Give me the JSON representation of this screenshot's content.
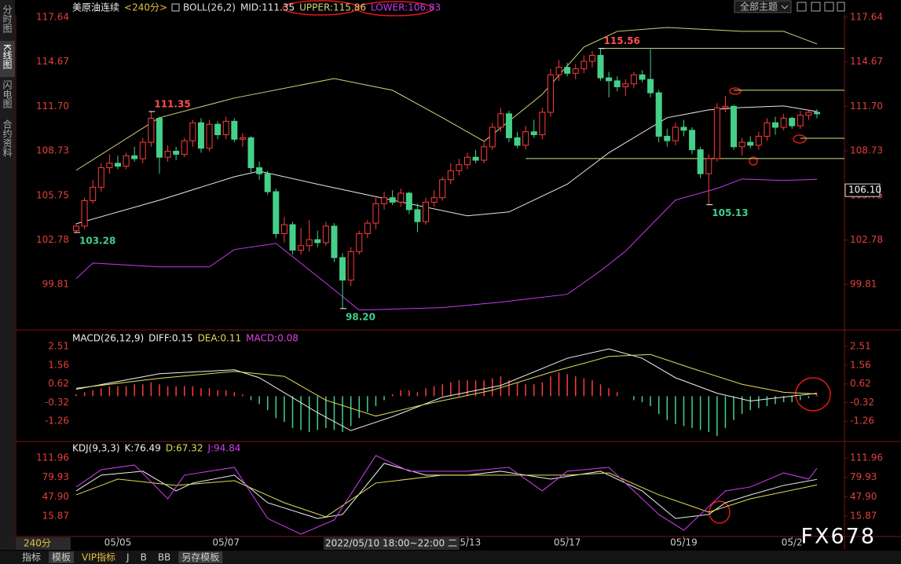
{
  "ui": {
    "sidebar": [
      "分时图",
      "K线图",
      "闪电图",
      "合约资料"
    ],
    "theme": "全部主题",
    "period_box": "240分",
    "tooltip": "2022/05/10 18:00~22:00 二",
    "bottom_tabs": [
      "指标",
      "模板",
      "VIP指标",
      "J",
      "B",
      "BB",
      "另存模板"
    ],
    "watermark": "FX678"
  },
  "chart_data": [
    {
      "type": "candlestick",
      "title": "美原油连续",
      "period": "<240分>",
      "indicator": "BOLL(26,2)",
      "up_color": "#ff3b3b",
      "down_color": "#45d08a",
      "xlim": [
        0,
        89
      ],
      "xticks": [
        {
          "value": 5,
          "label": "05/05"
        },
        {
          "value": 18,
          "label": "05/07"
        },
        {
          "value": 47,
          "label": "05/13"
        },
        {
          "value": 59,
          "label": "05/17"
        },
        {
          "value": 73,
          "label": "05/19"
        },
        {
          "value": 86,
          "label": "05/2"
        }
      ],
      "ylim": [
        96.88,
        117.85
      ],
      "yticks": [
        117.64,
        114.67,
        {
          "value": 111.7,
          "label": "111.70"
        },
        108.73,
        105.75,
        102.78,
        99.81
      ],
      "ohlc": [
        [
          103.4,
          103.9,
          103.28,
          103.7
        ],
        [
          103.7,
          105.6,
          103.5,
          105.4
        ],
        [
          105.4,
          106.8,
          105.2,
          106.3
        ],
        [
          106.3,
          107.9,
          106.0,
          107.6
        ],
        [
          107.6,
          108.5,
          107.2,
          107.9
        ],
        [
          107.9,
          108.4,
          107.5,
          107.7
        ],
        [
          107.7,
          108.6,
          107.5,
          108.4
        ],
        [
          108.4,
          109.0,
          108.0,
          108.2
        ],
        [
          108.2,
          109.6,
          107.9,
          109.3
        ],
        [
          109.3,
          111.35,
          109.0,
          110.9
        ],
        [
          110.9,
          111.0,
          107.2,
          108.3
        ],
        [
          108.3,
          109.1,
          108.0,
          108.7
        ],
        [
          108.7,
          109.0,
          108.1,
          108.5
        ],
        [
          108.5,
          109.6,
          108.3,
          109.4
        ],
        [
          109.4,
          110.8,
          109.0,
          110.6
        ],
        [
          110.6,
          110.9,
          108.6,
          108.9
        ],
        [
          108.9,
          110.8,
          108.7,
          110.5
        ],
        [
          110.5,
          110.7,
          109.5,
          109.8
        ],
        [
          109.8,
          111.0,
          109.5,
          110.7
        ],
        [
          110.7,
          110.9,
          109.3,
          109.5
        ],
        [
          109.5,
          109.9,
          109.0,
          109.6
        ],
        [
          109.6,
          109.7,
          107.3,
          107.6
        ],
        [
          107.6,
          108.0,
          106.8,
          107.2
        ],
        [
          107.2,
          107.4,
          105.8,
          106.0
        ],
        [
          106.0,
          106.2,
          102.9,
          103.2
        ],
        [
          103.2,
          104.3,
          102.6,
          103.8
        ],
        [
          103.8,
          104.0,
          101.8,
          102.1
        ],
        [
          102.1,
          103.6,
          101.8,
          102.4
        ],
        [
          102.4,
          104.1,
          102.0,
          102.8
        ],
        [
          102.8,
          103.4,
          102.3,
          102.6
        ],
        [
          102.6,
          104.0,
          102.4,
          103.7
        ],
        [
          103.7,
          103.9,
          101.3,
          101.6
        ],
        [
          101.6,
          101.9,
          98.2,
          100.1
        ],
        [
          100.1,
          102.3,
          99.7,
          102.0
        ],
        [
          102.0,
          103.4,
          101.8,
          103.2
        ],
        [
          103.2,
          104.1,
          102.9,
          103.9
        ],
        [
          103.9,
          105.6,
          103.5,
          105.2
        ],
        [
          105.2,
          106.0,
          104.8,
          105.6
        ],
        [
          105.6,
          106.1,
          105.1,
          105.3
        ],
        [
          105.3,
          106.2,
          105.0,
          105.9
        ],
        [
          105.9,
          106.0,
          104.5,
          104.8
        ],
        [
          104.8,
          105.2,
          103.3,
          104.0
        ],
        [
          104.0,
          105.6,
          103.8,
          105.3
        ],
        [
          105.3,
          106.1,
          105.0,
          105.6
        ],
        [
          105.6,
          107.0,
          105.4,
          106.8
        ],
        [
          106.8,
          107.9,
          106.5,
          107.4
        ],
        [
          107.4,
          108.2,
          107.1,
          107.8
        ],
        [
          107.8,
          108.6,
          107.5,
          108.3
        ],
        [
          108.3,
          108.8,
          107.9,
          108.1
        ],
        [
          108.1,
          109.4,
          107.9,
          109.0
        ],
        [
          109.0,
          110.6,
          108.8,
          110.3
        ],
        [
          110.3,
          111.6,
          110.0,
          111.2
        ],
        [
          111.2,
          111.4,
          109.3,
          109.6
        ],
        [
          109.6,
          110.0,
          108.9,
          109.1
        ],
        [
          109.1,
          110.4,
          108.8,
          110.0
        ],
        [
          110.0,
          110.8,
          109.6,
          109.8
        ],
        [
          109.8,
          111.6,
          109.5,
          111.3
        ],
        [
          111.3,
          114.2,
          111.0,
          113.8
        ],
        [
          113.8,
          114.8,
          113.4,
          114.3
        ],
        [
          114.3,
          114.6,
          113.7,
          113.9
        ],
        [
          113.9,
          114.5,
          113.5,
          114.2
        ],
        [
          114.2,
          115.1,
          113.9,
          114.7
        ],
        [
          114.7,
          115.4,
          114.3,
          115.1
        ],
        [
          115.1,
          115.56,
          113.4,
          113.6
        ],
        [
          113.6,
          114.0,
          112.3,
          113.4
        ],
        [
          113.4,
          113.7,
          112.7,
          113.0
        ],
        [
          113.0,
          113.5,
          112.4,
          113.2
        ],
        [
          113.2,
          114.0,
          112.9,
          113.8
        ],
        [
          113.8,
          114.1,
          113.3,
          113.5
        ],
        [
          113.5,
          115.5,
          112.3,
          112.6
        ],
        [
          112.6,
          112.8,
          109.3,
          109.7
        ],
        [
          109.7,
          110.2,
          109.0,
          109.4
        ],
        [
          109.4,
          110.6,
          109.1,
          110.3
        ],
        [
          110.3,
          110.8,
          109.7,
          110.1
        ],
        [
          110.1,
          110.3,
          108.5,
          108.8
        ],
        [
          108.8,
          109.0,
          106.9,
          107.2
        ],
        [
          107.2,
          108.5,
          105.13,
          108.2
        ],
        [
          108.2,
          111.9,
          108.0,
          111.6
        ],
        [
          111.6,
          112.4,
          111.3,
          111.7
        ],
        [
          111.7,
          111.8,
          108.8,
          109.0
        ],
        [
          109.0,
          109.6,
          108.4,
          109.3
        ],
        [
          109.3,
          109.7,
          108.9,
          109.1
        ],
        [
          109.1,
          110.0,
          108.8,
          109.7
        ],
        [
          109.7,
          110.9,
          109.4,
          110.6
        ],
        [
          110.6,
          111.0,
          109.8,
          110.3
        ],
        [
          110.3,
          111.2,
          110.1,
          110.9
        ],
        [
          110.9,
          111.0,
          110.2,
          110.4
        ],
        [
          110.4,
          111.4,
          110.2,
          111.1
        ],
        [
          111.1,
          111.5,
          110.8,
          111.3
        ],
        [
          111.3,
          111.5,
          110.9,
          111.2
        ]
      ],
      "series": [
        {
          "name": "MID:111.35",
          "color": "#e6e6e6",
          "x": [
            0,
            10,
            19,
            22,
            29,
            38,
            47,
            52,
            59,
            64,
            71,
            76,
            80,
            85,
            89
          ],
          "values": [
            103.86,
            105.43,
            107.0,
            107.37,
            106.5,
            105.43,
            104.39,
            104.65,
            106.5,
            108.6,
            110.94,
            111.46,
            111.62,
            111.72,
            111.35
          ]
        },
        {
          "name": "UPPER:115.86",
          "color": "#d8d27a",
          "x": [
            0,
            10,
            19,
            31,
            38,
            44,
            49,
            56,
            61,
            65,
            71,
            80,
            85,
            89
          ],
          "values": [
            107.43,
            110.94,
            112.25,
            113.55,
            112.77,
            110.94,
            109.36,
            112.5,
            115.65,
            116.7,
            116.96,
            116.7,
            116.7,
            115.86
          ]
        },
        {
          "name": "LOWER:106.83",
          "color": "#c43cf0",
          "x": [
            0,
            2,
            10,
            16,
            19,
            24,
            30,
            34,
            44,
            51,
            59,
            63,
            66,
            72,
            77,
            80,
            85,
            89
          ],
          "values": [
            100.2,
            101.24,
            100.98,
            100.98,
            102.14,
            102.55,
            99.9,
            98.1,
            98.26,
            98.63,
            99.15,
            100.72,
            102.03,
            105.44,
            106.22,
            106.85,
            106.75,
            106.83
          ]
        }
      ],
      "highs": [
        {
          "x": 9,
          "value": 111.35
        },
        {
          "x": 63,
          "value": 115.56
        }
      ],
      "lows": [
        {
          "x": 0,
          "value": 103.28
        },
        {
          "x": 32,
          "value": 98.2,
          "label": "98.20"
        },
        {
          "x": 76,
          "value": 105.13
        }
      ],
      "hlines": [
        {
          "x": 63,
          "value": 115.56
        },
        {
          "x": 79,
          "value": 112.77
        },
        {
          "x": 87,
          "value": 109.57
        },
        {
          "x": 54,
          "value": 108.21
        }
      ],
      "hline_color": "#cde68a",
      "cursor_label": {
        "value": 106.1,
        "label": "106.10"
      }
    },
    {
      "type": "macd",
      "title": "MACD(26,12,9)",
      "xlim": [
        0,
        89
      ],
      "ylim": [
        -2.12,
        3.02
      ],
      "yticks": [
        2.51,
        1.56,
        0.62,
        -0.32,
        -1.26
      ],
      "up_color": "#ff3b3b",
      "down_color": "#45d08a",
      "series": [
        {
          "name": "DIFF:0.15",
          "color": "#f0f0f0",
          "x": [
            0,
            10,
            19,
            22,
            29,
            33,
            38,
            44,
            51,
            59,
            64,
            68,
            72,
            77,
            81,
            89
          ],
          "values": [
            0.35,
            1.13,
            1.33,
            0.93,
            -0.83,
            -1.73,
            -1.03,
            -0.05,
            0.54,
            1.91,
            2.38,
            1.91,
            0.93,
            0.15,
            -0.24,
            0.15
          ]
        },
        {
          "name": "DEA:0.11",
          "color": "#e2dc5a",
          "x": [
            0,
            10,
            19,
            25,
            30,
            36,
            42,
            50,
            57,
            64,
            69,
            74,
            80,
            85,
            89
          ],
          "values": [
            0.4,
            0.9,
            1.25,
            1.0,
            -0.2,
            -1.0,
            -0.4,
            0.3,
            1.2,
            2.0,
            2.1,
            1.4,
            0.6,
            0.2,
            0.11
          ]
        },
        {
          "name": "MACD:0.08",
          "color": "#e040e0",
          "kind": "histogram",
          "values": [
            0.1,
            0.2,
            0.3,
            0.4,
            0.5,
            0.5,
            0.5,
            0.6,
            0.6,
            0.7,
            0.6,
            0.5,
            0.5,
            0.5,
            0.5,
            0.4,
            0.4,
            0.3,
            0.3,
            0.2,
            0.1,
            -0.2,
            -0.4,
            -0.7,
            -1.1,
            -1.3,
            -1.6,
            -1.7,
            -1.8,
            -1.7,
            -1.6,
            -1.7,
            -1.8,
            -1.5,
            -1.1,
            -0.8,
            -0.5,
            -0.2,
            0.1,
            0.3,
            0.3,
            0.2,
            0.4,
            0.5,
            0.6,
            0.7,
            0.8,
            0.8,
            0.8,
            0.8,
            0.9,
            1.0,
            0.8,
            0.7,
            0.6,
            0.6,
            0.7,
            1.0,
            1.2,
            1.1,
            1.0,
            0.9,
            0.8,
            0.6,
            0.4,
            0.2,
            0.0,
            -0.2,
            -0.3,
            -0.5,
            -0.9,
            -1.2,
            -1.4,
            -1.5,
            -1.6,
            -1.7,
            -1.8,
            -2.0,
            -1.6,
            -1.2,
            -0.9,
            -0.7,
            -0.6,
            -0.5,
            -0.4,
            -0.3,
            -0.3,
            -0.2,
            -0.1,
            0.08
          ]
        }
      ]
    },
    {
      "type": "line",
      "title": "KDJ(9,3,3)",
      "xlim": [
        0,
        89
      ],
      "ylim": [
        -17.8,
        122.3
      ],
      "yticks": [
        111.96,
        79.93,
        {
          "value": 47.9,
          "label": "47.90"
        },
        15.87
      ],
      "series": [
        {
          "name": "K:76.49",
          "color": "#f0f0f0",
          "x": [
            0,
            3,
            8,
            12,
            14,
            19,
            23,
            29,
            32,
            37,
            42,
            47,
            51,
            57,
            63,
            68,
            72,
            76,
            78,
            81,
            85,
            89
          ],
          "values": [
            57.5,
            83.5,
            90,
            57.5,
            70.5,
            83.5,
            38,
            12,
            18.6,
            103,
            83.5,
            83.5,
            90,
            77,
            90,
            57.5,
            12,
            18.6,
            38,
            51,
            66.6,
            76.49
          ]
        },
        {
          "name": "D:67.32",
          "color": "#e2dc5a",
          "x": [
            0,
            5,
            12,
            19,
            25,
            30,
            36,
            44,
            51,
            59,
            64,
            70,
            76,
            81,
            89
          ],
          "values": [
            51,
            77,
            66.6,
            74.4,
            38,
            14.7,
            70.5,
            83.5,
            83.5,
            83.5,
            87.3,
            51,
            22.5,
            44.5,
            67.32
          ]
        },
        {
          "name": "J:94.84",
          "color": "#d040f0",
          "x": [
            0,
            3,
            7,
            11,
            13,
            19,
            23,
            27,
            31,
            36,
            40,
            47,
            52,
            56,
            59,
            64,
            70,
            73,
            78,
            81,
            85,
            88,
            89
          ],
          "values": [
            64,
            92.5,
            100.3,
            44.5,
            83.5,
            96.4,
            12,
            -13.8,
            9.5,
            115.9,
            90,
            90,
            96.4,
            57.5,
            90,
            96.4,
            18.6,
            -7.4,
            57.5,
            64,
            87.3,
            77,
            94.84
          ]
        }
      ]
    }
  ]
}
